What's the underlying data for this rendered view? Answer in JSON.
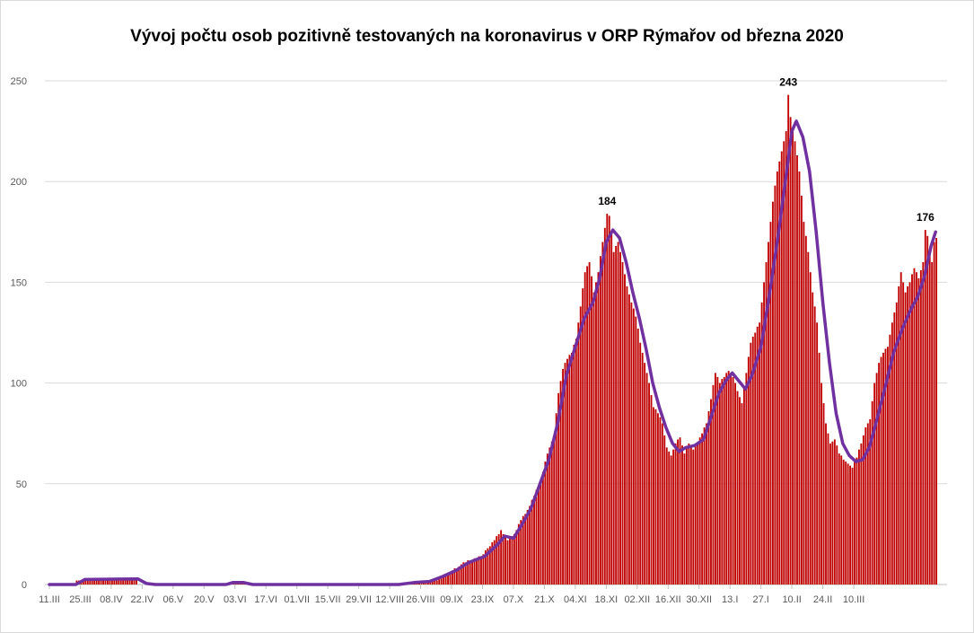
{
  "chart_data": {
    "type": "bar",
    "title": "Vývoj počtu osob pozitivně testovaných na koronavirus v ORP Rýmařov od března 2020",
    "xlabel": "",
    "ylabel": "",
    "ylim": [
      0,
      250
    ],
    "y_ticks": [
      0,
      50,
      100,
      150,
      200,
      250
    ],
    "grid": true,
    "legend": "none",
    "x_tick_labels": [
      "11.III",
      "25.III",
      "08.IV",
      "22.IV",
      "06.V",
      "20.V",
      "03.VI",
      "17.VI",
      "01.VII",
      "15.VII",
      "29.VII",
      "12.VIII",
      "26.VIII",
      "09.IX",
      "23.IX",
      "07.X",
      "21.X",
      "04.XI",
      "18.XI",
      "02.XII",
      "16.XII",
      "30.XII",
      "13.I",
      "27.I",
      "10.II",
      "24.II",
      "10.III"
    ],
    "x_tick_step_days": 14,
    "series": [
      {
        "kind": "bar",
        "color": "#c00000",
        "day_ranges": [
          {
            "start": 0,
            "end": 12,
            "value": 0
          },
          {
            "start": 12,
            "end": 16,
            "value": 2
          },
          {
            "start": 16,
            "end": 40,
            "value": 3
          },
          {
            "start": 40,
            "end": 82,
            "value": 0
          },
          {
            "start": 82,
            "end": 90,
            "value": 1
          },
          {
            "start": 90,
            "end": 158,
            "value": 0
          }
        ],
        "keypoints": [
          [
            158,
            0
          ],
          [
            165,
            1
          ],
          [
            170,
            2
          ],
          [
            175,
            2
          ],
          [
            180,
            5
          ],
          [
            186,
            10
          ],
          [
            190,
            12
          ],
          [
            195,
            14
          ],
          [
            198,
            18
          ],
          [
            201,
            22
          ],
          [
            204,
            27
          ],
          [
            207,
            22
          ],
          [
            210,
            25
          ],
          [
            213,
            32
          ],
          [
            216,
            37
          ],
          [
            219,
            44
          ],
          [
            222,
            52
          ],
          [
            225,
            65
          ],
          [
            228,
            74
          ],
          [
            230,
            95
          ],
          [
            232,
            107
          ],
          [
            234,
            112
          ],
          [
            236,
            115
          ],
          [
            238,
            122
          ],
          [
            240,
            138
          ],
          [
            242,
            155
          ],
          [
            244,
            160
          ],
          [
            246,
            145
          ],
          [
            248,
            155
          ],
          [
            250,
            170
          ],
          [
            252,
            184
          ],
          [
            253,
            183
          ],
          [
            255,
            165
          ],
          [
            257,
            170
          ],
          [
            259,
            160
          ],
          [
            261,
            148
          ],
          [
            263,
            140
          ],
          [
            265,
            133
          ],
          [
            267,
            120
          ],
          [
            269,
            110
          ],
          [
            271,
            100
          ],
          [
            273,
            88
          ],
          [
            275,
            85
          ],
          [
            277,
            80
          ],
          [
            279,
            68
          ],
          [
            281,
            64
          ],
          [
            283,
            70
          ],
          [
            285,
            73
          ],
          [
            287,
            65
          ],
          [
            289,
            70
          ],
          [
            291,
            67
          ],
          [
            293,
            70
          ],
          [
            295,
            75
          ],
          [
            297,
            80
          ],
          [
            299,
            92
          ],
          [
            301,
            105
          ],
          [
            303,
            100
          ],
          [
            305,
            103
          ],
          [
            307,
            106
          ],
          [
            309,
            103
          ],
          [
            311,
            96
          ],
          [
            313,
            90
          ],
          [
            315,
            105
          ],
          [
            317,
            120
          ],
          [
            319,
            125
          ],
          [
            321,
            130
          ],
          [
            323,
            150
          ],
          [
            325,
            170
          ],
          [
            327,
            190
          ],
          [
            329,
            205
          ],
          [
            331,
            215
          ],
          [
            333,
            225
          ],
          [
            334,
            243
          ],
          [
            335,
            232
          ],
          [
            337,
            220
          ],
          [
            339,
            205
          ],
          [
            341,
            180
          ],
          [
            343,
            165
          ],
          [
            345,
            145
          ],
          [
            347,
            130
          ],
          [
            349,
            100
          ],
          [
            351,
            80
          ],
          [
            353,
            70
          ],
          [
            355,
            72
          ],
          [
            357,
            65
          ],
          [
            359,
            62
          ],
          [
            361,
            60
          ],
          [
            363,
            58
          ],
          [
            365,
            63
          ],
          [
            367,
            70
          ],
          [
            369,
            78
          ],
          [
            371,
            82
          ],
          [
            373,
            100
          ],
          [
            375,
            110
          ],
          [
            377,
            115
          ],
          [
            379,
            118
          ],
          [
            381,
            130
          ],
          [
            383,
            140
          ],
          [
            385,
            155
          ],
          [
            387,
            145
          ],
          [
            389,
            150
          ],
          [
            391,
            157
          ],
          [
            393,
            152
          ],
          [
            395,
            160
          ],
          [
            396,
            176
          ],
          [
            397,
            173
          ],
          [
            398,
            165
          ],
          [
            399,
            160
          ],
          [
            400,
            170
          ],
          [
            401,
            172
          ]
        ]
      },
      {
        "kind": "line",
        "color": "#7030a0",
        "name": "",
        "points": [
          [
            0,
            0
          ],
          [
            12,
            0
          ],
          [
            16,
            2.5
          ],
          [
            40,
            2.8
          ],
          [
            44,
            0.5
          ],
          [
            48,
            0
          ],
          [
            80,
            0
          ],
          [
            83,
            1
          ],
          [
            88,
            1
          ],
          [
            92,
            0
          ],
          [
            158,
            0
          ],
          [
            165,
            1
          ],
          [
            172,
            1.5
          ],
          [
            178,
            4
          ],
          [
            184,
            7
          ],
          [
            190,
            11
          ],
          [
            197,
            14
          ],
          [
            203,
            20
          ],
          [
            206,
            24
          ],
          [
            210,
            23
          ],
          [
            214,
            30
          ],
          [
            218,
            38
          ],
          [
            222,
            50
          ],
          [
            226,
            62
          ],
          [
            230,
            80
          ],
          [
            234,
            104
          ],
          [
            238,
            118
          ],
          [
            242,
            132
          ],
          [
            246,
            140
          ],
          [
            249,
            152
          ],
          [
            252,
            170
          ],
          [
            255,
            176
          ],
          [
            258,
            172
          ],
          [
            261,
            160
          ],
          [
            264,
            145
          ],
          [
            267,
            132
          ],
          [
            270,
            117
          ],
          [
            273,
            100
          ],
          [
            276,
            88
          ],
          [
            279,
            78
          ],
          [
            282,
            70
          ],
          [
            285,
            66
          ],
          [
            288,
            68
          ],
          [
            292,
            69
          ],
          [
            296,
            72
          ],
          [
            300,
            85
          ],
          [
            303,
            95
          ],
          [
            306,
            101
          ],
          [
            309,
            105
          ],
          [
            312,
            101
          ],
          [
            315,
            97
          ],
          [
            318,
            104
          ],
          [
            322,
            118
          ],
          [
            326,
            145
          ],
          [
            330,
            175
          ],
          [
            333,
            200
          ],
          [
            336,
            225
          ],
          [
            338,
            230
          ],
          [
            341,
            222
          ],
          [
            344,
            205
          ],
          [
            347,
            175
          ],
          [
            350,
            140
          ],
          [
            353,
            110
          ],
          [
            356,
            85
          ],
          [
            359,
            70
          ],
          [
            362,
            64
          ],
          [
            365,
            61
          ],
          [
            368,
            62
          ],
          [
            371,
            68
          ],
          [
            374,
            80
          ],
          [
            378,
            97
          ],
          [
            382,
            115
          ],
          [
            386,
            127
          ],
          [
            390,
            137
          ],
          [
            393,
            143
          ],
          [
            396,
            153
          ],
          [
            399,
            168
          ],
          [
            401,
            175
          ]
        ]
      }
    ],
    "annotations": [
      {
        "day": 252,
        "value": 184,
        "text": "184"
      },
      {
        "day": 334,
        "value": 243,
        "text": "243"
      },
      {
        "day": 396,
        "value": 176,
        "text": "176"
      }
    ]
  }
}
